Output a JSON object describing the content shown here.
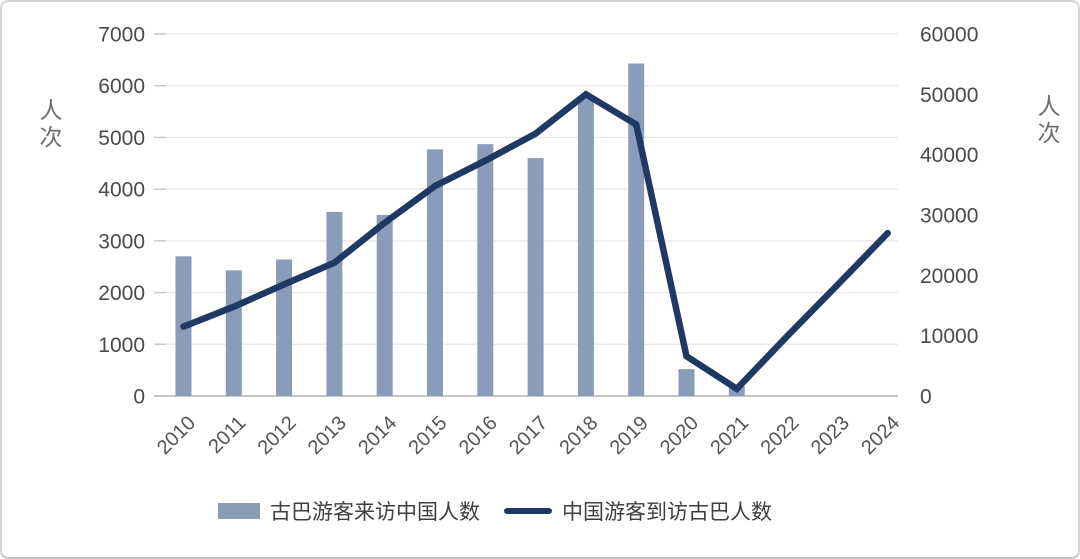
{
  "chart_data": {
    "type": "bar",
    "subtype": "combo-bar-line-dual-axis",
    "categories": [
      "2010",
      "2011",
      "2012",
      "2013",
      "2014",
      "2015",
      "2016",
      "2017",
      "2018",
      "2019",
      "2020",
      "2021",
      "2022",
      "2023",
      "2024"
    ],
    "series": [
      {
        "name": "古巴游客来访中国人数",
        "type": "bar",
        "axis": "left",
        "color": "#8b9cba",
        "values": [
          2700,
          2430,
          2640,
          3560,
          3500,
          4770,
          4870,
          4600,
          5750,
          6430,
          520,
          190,
          null,
          null,
          null
        ]
      },
      {
        "name": "中国游客到访古巴人数",
        "type": "line",
        "axis": "right",
        "color": "#1f3864",
        "values": [
          11500,
          14800,
          18500,
          22100,
          28700,
          34800,
          39000,
          43500,
          50000,
          45000,
          6600,
          1200,
          9900,
          18400,
          27000
        ]
      }
    ],
    "left_axis": {
      "title": "人次",
      "min": 0,
      "max": 7000,
      "step": 1000,
      "tick_labels": [
        "0",
        "1000",
        "2000",
        "3000",
        "4000",
        "5000",
        "6000",
        "7000"
      ]
    },
    "right_axis": {
      "title": "人次",
      "min": 0,
      "max": 60000,
      "step": 10000,
      "tick_labels": [
        "0",
        "10000",
        "20000",
        "30000",
        "40000",
        "50000",
        "60000"
      ]
    },
    "grid": true,
    "legend_position": "bottom"
  },
  "colors": {
    "bar": "#8b9cba",
    "line": "#1f3864",
    "gridline": "#e6e6e6",
    "axis_line": "#b3b3b3",
    "tick_text": "#4a4a4a",
    "axis_title_text": "#6e6e6e",
    "frame_border": "#d5d5d5"
  }
}
